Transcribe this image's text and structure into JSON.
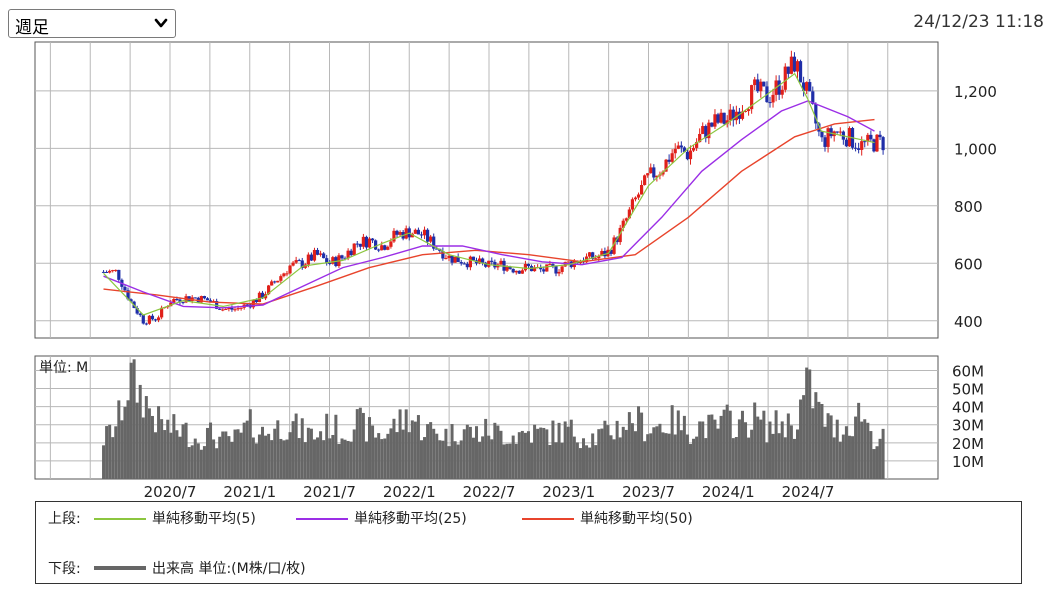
{
  "header": {
    "period": "週足",
    "timestamp": "24/12/23 11:18"
  },
  "volume_panel": {
    "unit_label": "単位: M"
  },
  "legend": {
    "upper_label": "上段:",
    "lower_label": "下段:",
    "ma5": "単純移動平均(5)",
    "ma25": "単純移動平均(25)",
    "ma50": "単純移動平均(50)",
    "volume": "出来高 単位:(M株/口/枚)"
  },
  "colors": {
    "up": "#e0201a",
    "down": "#1f2ea8",
    "ma5": "#8cc63f",
    "ma25": "#9b2ee6",
    "ma50": "#e8442c",
    "volume": "#666666",
    "grid": "#b8b8b8"
  },
  "chart_data": [
    {
      "type": "candlestick",
      "x_ticks": [
        "2020/7",
        "2021/1",
        "2021/7",
        "2022/1",
        "2022/7",
        "2023/1",
        "2023/7",
        "2024/1",
        "2024/7"
      ],
      "y_ticks": [
        "400",
        "600",
        "800",
        "1,000",
        "1,200"
      ],
      "ylim": [
        340,
        1370
      ],
      "grid": true,
      "price_points": [
        [
          "2020/2",
          570
        ],
        [
          "2020/3",
          570
        ],
        [
          "2020/4",
          470
        ],
        [
          "2020/5",
          400
        ],
        [
          "2020/6",
          410
        ],
        [
          "2020/7",
          470
        ],
        [
          "2020/8",
          480
        ],
        [
          "2020/9",
          480
        ],
        [
          "2020/10",
          470
        ],
        [
          "2020/11",
          440
        ],
        [
          "2020/12",
          440
        ],
        [
          "2021/1",
          460
        ],
        [
          "2021/2",
          490
        ],
        [
          "2021/3",
          540
        ],
        [
          "2021/4",
          590
        ],
        [
          "2021/5",
          600
        ],
        [
          "2021/6",
          630
        ],
        [
          "2021/7",
          600
        ],
        [
          "2021/8",
          620
        ],
        [
          "2021/9",
          670
        ],
        [
          "2021/10",
          680
        ],
        [
          "2021/11",
          660
        ],
        [
          "2021/12",
          700
        ],
        [
          "2022/1",
          710
        ],
        [
          "2022/2",
          700
        ],
        [
          "2022/3",
          660
        ],
        [
          "2022/4",
          620
        ],
        [
          "2022/5",
          610
        ],
        [
          "2022/6",
          600
        ],
        [
          "2022/7",
          590
        ],
        [
          "2022/8",
          595
        ],
        [
          "2022/9",
          580
        ],
        [
          "2022/10",
          585
        ],
        [
          "2022/11",
          575
        ],
        [
          "2022/12",
          580
        ],
        [
          "2023/1",
          600
        ],
        [
          "2023/2",
          615
        ],
        [
          "2023/3",
          620
        ],
        [
          "2023/4",
          640
        ],
        [
          "2023/5",
          720
        ],
        [
          "2023/6",
          820
        ],
        [
          "2023/7",
          900
        ],
        [
          "2023/8",
          930
        ],
        [
          "2023/9",
          1000
        ],
        [
          "2023/10",
          980
        ],
        [
          "2023/11",
          1050
        ],
        [
          "2023/12",
          1090
        ],
        [
          "2024/1",
          1100
        ],
        [
          "2024/2",
          1150
        ],
        [
          "2024/3",
          1200
        ],
        [
          "2024/4",
          1180
        ],
        [
          "2024/5",
          1230
        ],
        [
          "2024/6",
          1300
        ],
        [
          "2024/7",
          1180
        ],
        [
          "2024/8",
          1020
        ],
        [
          "2024/9",
          1060
        ],
        [
          "2024/10",
          1040
        ],
        [
          "2024/11",
          1010
        ],
        [
          "2024/12",
          1020
        ]
      ],
      "ma5": [
        [
          "2020/2",
          565
        ],
        [
          "2020/5",
          420
        ],
        [
          "2020/8",
          470
        ],
        [
          "2020/11",
          450
        ],
        [
          "2021/2",
          480
        ],
        [
          "2021/5",
          590
        ],
        [
          "2021/8",
          610
        ],
        [
          "2021/11",
          670
        ],
        [
          "2022/1",
          705
        ],
        [
          "2022/4",
          630
        ],
        [
          "2022/7",
          595
        ],
        [
          "2022/10",
          582
        ],
        [
          "2023/1",
          595
        ],
        [
          "2023/4",
          635
        ],
        [
          "2023/7",
          870
        ],
        [
          "2023/10",
          1000
        ],
        [
          "2024/1",
          1090
        ],
        [
          "2024/4",
          1190
        ],
        [
          "2024/6",
          1260
        ],
        [
          "2024/7",
          1170
        ],
        [
          "2024/8",
          1060
        ],
        [
          "2024/10",
          1040
        ],
        [
          "2024/12",
          1020
        ]
      ],
      "ma25": [
        [
          "2020/2",
          555
        ],
        [
          "2020/5",
          500
        ],
        [
          "2020/8",
          450
        ],
        [
          "2020/11",
          445
        ],
        [
          "2021/2",
          455
        ],
        [
          "2021/5",
          520
        ],
        [
          "2021/8",
          585
        ],
        [
          "2021/11",
          620
        ],
        [
          "2022/2",
          660
        ],
        [
          "2022/5",
          660
        ],
        [
          "2022/8",
          630
        ],
        [
          "2022/11",
          605
        ],
        [
          "2023/2",
          595
        ],
        [
          "2023/5",
          620
        ],
        [
          "2023/8",
          760
        ],
        [
          "2023/11",
          920
        ],
        [
          "2024/2",
          1030
        ],
        [
          "2024/5",
          1130
        ],
        [
          "2024/7",
          1165
        ],
        [
          "2024/10",
          1110
        ],
        [
          "2024/12",
          1060
        ]
      ],
      "ma50": [
        [
          "2020/2",
          510
        ],
        [
          "2020/6",
          490
        ],
        [
          "2020/10",
          465
        ],
        [
          "2021/2",
          458
        ],
        [
          "2021/6",
          520
        ],
        [
          "2021/10",
          585
        ],
        [
          "2022/2",
          630
        ],
        [
          "2022/6",
          645
        ],
        [
          "2022/10",
          630
        ],
        [
          "2023/2",
          605
        ],
        [
          "2023/6",
          630
        ],
        [
          "2023/10",
          760
        ],
        [
          "2024/2",
          920
        ],
        [
          "2024/6",
          1040
        ],
        [
          "2024/9",
          1085
        ],
        [
          "2024/12",
          1100
        ]
      ]
    },
    {
      "type": "bar",
      "title": "単位: M",
      "y_ticks": [
        "10M",
        "20M",
        "30M",
        "40M",
        "50M",
        "60M"
      ],
      "ylim": [
        0,
        68
      ],
      "x_ticks": [
        "2020/7",
        "2021/1",
        "2021/7",
        "2022/1",
        "2022/7",
        "2023/1",
        "2023/7",
        "2024/1",
        "2024/7"
      ],
      "volume_points": [
        [
          "2020/2",
          22
        ],
        [
          "2020/3",
          30
        ],
        [
          "2020/4",
          56
        ],
        [
          "2020/5",
          45
        ],
        [
          "2020/6",
          32
        ],
        [
          "2020/7",
          28
        ],
        [
          "2020/8",
          27
        ],
        [
          "2020/9",
          22
        ],
        [
          "2020/10",
          25
        ],
        [
          "2020/11",
          21
        ],
        [
          "2020/12",
          22
        ],
        [
          "2021/1",
          30
        ],
        [
          "2021/2",
          25
        ],
        [
          "2021/3",
          28
        ],
        [
          "2021/4",
          31
        ],
        [
          "2021/5",
          26
        ],
        [
          "2021/6",
          24
        ],
        [
          "2021/7",
          30
        ],
        [
          "2021/8",
          25
        ],
        [
          "2021/9",
          32
        ],
        [
          "2021/10",
          27
        ],
        [
          "2021/11",
          24
        ],
        [
          "2021/12",
          30
        ],
        [
          "2022/1",
          35
        ],
        [
          "2022/2",
          28
        ],
        [
          "2022/3",
          26
        ],
        [
          "2022/4",
          24
        ],
        [
          "2022/5",
          28
        ],
        [
          "2022/6",
          25
        ],
        [
          "2022/7",
          27
        ],
        [
          "2022/8",
          25
        ],
        [
          "2022/9",
          24
        ],
        [
          "2022/10",
          26
        ],
        [
          "2022/11",
          25
        ],
        [
          "2022/12",
          26
        ],
        [
          "2023/1",
          27
        ],
        [
          "2023/2",
          24
        ],
        [
          "2023/3",
          23
        ],
        [
          "2023/4",
          26
        ],
        [
          "2023/5",
          30
        ],
        [
          "2023/6",
          33
        ],
        [
          "2023/7",
          28
        ],
        [
          "2023/8",
          30
        ],
        [
          "2023/9",
          32
        ],
        [
          "2023/10",
          27
        ],
        [
          "2023/11",
          30
        ],
        [
          "2023/12",
          28
        ],
        [
          "2024/1",
          33
        ],
        [
          "2024/2",
          30
        ],
        [
          "2024/3",
          34
        ],
        [
          "2024/4",
          28
        ],
        [
          "2024/5",
          31
        ],
        [
          "2024/6",
          30
        ],
        [
          "2024/7",
          52
        ],
        [
          "2024/8",
          36
        ],
        [
          "2024/9",
          27
        ],
        [
          "2024/10",
          29
        ],
        [
          "2024/11",
          38
        ],
        [
          "2024/12",
          22
        ]
      ]
    }
  ]
}
